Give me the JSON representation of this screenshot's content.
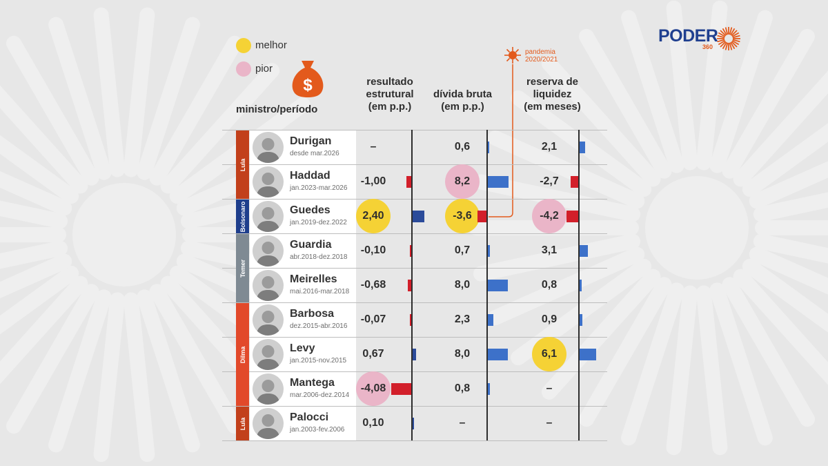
{
  "brand": {
    "name": "PODER",
    "sub": "360"
  },
  "legend": [
    {
      "label": "melhor",
      "color": "#f5d235"
    },
    {
      "label": "pior",
      "color": "#eab5c8"
    }
  ],
  "icon": "money-bag-icon",
  "headers": {
    "minister": "ministro/período",
    "resultado": [
      "resultado",
      "estrutural",
      "(em p.p.)"
    ],
    "divida": [
      "dívida bruta",
      "(em p.p.)"
    ],
    "reserva": [
      "reserva de",
      "liquidez",
      "(em meses)"
    ]
  },
  "annotation": {
    "line1": "pandemia",
    "line2": "2020/2021",
    "icon": "virus-icon"
  },
  "colors": {
    "orange": "#e35a1c",
    "bar_positive_dark": "#2b4b9a",
    "bar_positive_light": "#3d71c9",
    "bar_negative": "#d21f2a",
    "party_lula": "#c2401b",
    "party_bolsonaro": "#1e3e8c",
    "party_temer": "#7f8a93",
    "party_dilma": "#e2492a"
  },
  "parties": [
    {
      "label": "Lula",
      "color": "#c2401b",
      "rows": [
        0,
        1
      ]
    },
    {
      "label": "Bolsonaro",
      "color": "#1e3e8c",
      "rows": [
        2,
        2
      ]
    },
    {
      "label": "Temer",
      "color": "#7f8a93",
      "rows": [
        3,
        4
      ]
    },
    {
      "label": "Dilma",
      "color": "#e2492a",
      "rows": [
        5,
        7
      ]
    },
    {
      "label": "Lula",
      "color": "#c2401b",
      "rows": [
        8,
        8
      ]
    }
  ],
  "chart_data": {
    "type": "table",
    "columns": [
      "resultado estrutural (em p.p.)",
      "dívida bruta (em p.p.)",
      "reserva de liquidez (em meses)"
    ],
    "rows": [
      {
        "name": "Durigan",
        "period": "desde mar.2026",
        "resultado": null,
        "resultado_label": "–",
        "divida": 0.6,
        "divida_label": "0,6",
        "reserva": 2.1,
        "reserva_label": "2,1",
        "highlight": {}
      },
      {
        "name": "Haddad",
        "period": "jan.2023-mar.2026",
        "resultado": -1.0,
        "resultado_label": "-1,00",
        "divida": 8.2,
        "divida_label": "8,2",
        "reserva": -2.7,
        "reserva_label": "-2,7",
        "highlight": {
          "divida": "pior"
        }
      },
      {
        "name": "Guedes",
        "period": "jan.2019-dez.2022",
        "resultado": 2.4,
        "resultado_label": "2,40",
        "divida": -3.6,
        "divida_label": "-3,6",
        "reserva": -4.2,
        "reserva_label": "-4,2",
        "highlight": {
          "resultado": "melhor",
          "divida": "melhor",
          "reserva": "pior"
        }
      },
      {
        "name": "Guardia",
        "period": "abr.2018-dez.2018",
        "resultado": -0.1,
        "resultado_label": "-0,10",
        "divida": 0.7,
        "divida_label": "0,7",
        "reserva": 3.1,
        "reserva_label": "3,1",
        "highlight": {}
      },
      {
        "name": "Meirelles",
        "period": "mai.2016-mar.2018",
        "resultado": -0.68,
        "resultado_label": "-0,68",
        "divida": 8.0,
        "divida_label": "8,0",
        "reserva": 0.8,
        "reserva_label": "0,8",
        "highlight": {}
      },
      {
        "name": "Barbosa",
        "period": "dez.2015-abr.2016",
        "resultado": -0.07,
        "resultado_label": "-0,07",
        "divida": 2.3,
        "divida_label": "2,3",
        "reserva": 0.9,
        "reserva_label": "0,9",
        "highlight": {}
      },
      {
        "name": "Levy",
        "period": "jan.2015-nov.2015",
        "resultado": 0.67,
        "resultado_label": "0,67",
        "divida": 8.0,
        "divida_label": "8,0",
        "reserva": 6.1,
        "reserva_label": "6,1",
        "highlight": {
          "reserva": "melhor"
        }
      },
      {
        "name": "Mantega",
        "period": "mar.2006-dez.2014",
        "resultado": -4.08,
        "resultado_label": "-4,08",
        "divida": 0.8,
        "divida_label": "0,8",
        "reserva": null,
        "reserva_label": "–",
        "highlight": {
          "resultado": "pior"
        }
      },
      {
        "name": "Palocci",
        "period": "jan.2003-fev.2006",
        "resultado": 0.1,
        "resultado_label": "0,10",
        "divida": null,
        "divida_label": "–",
        "reserva": null,
        "reserva_label": "–",
        "highlight": {}
      }
    ]
  }
}
